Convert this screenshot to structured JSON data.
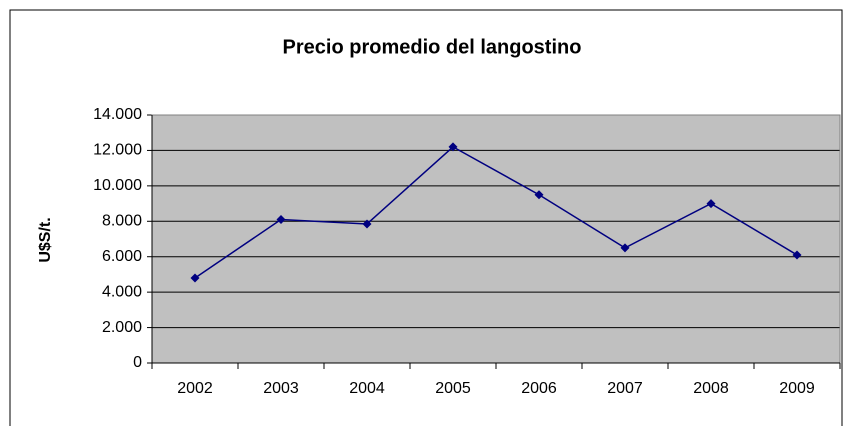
{
  "chart_data": {
    "type": "line",
    "title": "Precio promedio del langostino",
    "y_label": "U$S/t.",
    "categories": [
      "2002",
      "2003",
      "2004",
      "2005",
      "2006",
      "2007",
      "2008",
      "2009"
    ],
    "series": [
      {
        "name": "Precio",
        "color": "#000080",
        "values": [
          4800,
          8100,
          7850,
          12200,
          9500,
          6500,
          9000,
          6100
        ]
      }
    ],
    "ylim": [
      0,
      14000
    ],
    "yticks": [
      0,
      {
        "value": 2000,
        "label": "2.000"
      },
      {
        "value": 4000,
        "label": "4.000"
      },
      {
        "value": 6000,
        "label": "6.000"
      },
      {
        "value": 8000,
        "label": "8.000"
      },
      {
        "value": 10000,
        "label": "10.000"
      },
      {
        "value": 12000,
        "label": "12.000"
      },
      {
        "value": 14000,
        "label": "14.000"
      }
    ],
    "grid": true,
    "plot_background": "#c0c0c0"
  }
}
